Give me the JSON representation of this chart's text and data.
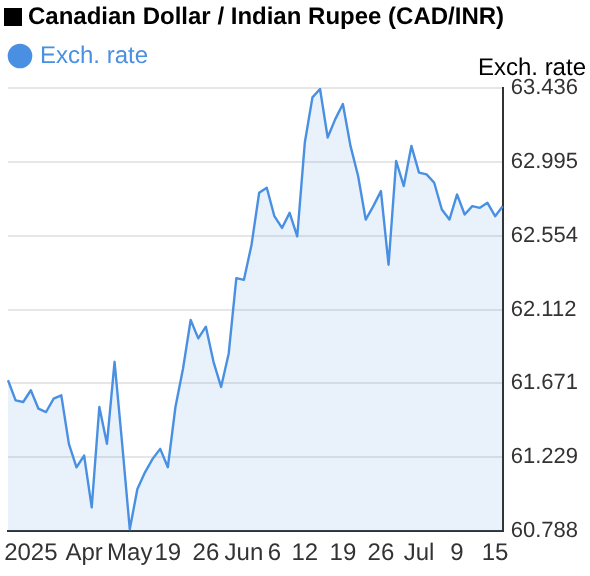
{
  "chart_data": {
    "type": "area",
    "title": "Canadian Dollar / Indian Rupee (CAD/INR)",
    "ylabel": "Exch. rate",
    "categories": [
      null,
      null,
      null,
      "2025",
      null,
      null,
      null,
      null,
      null,
      null,
      "Apr",
      null,
      null,
      null,
      null,
      null,
      "May",
      null,
      null,
      null,
      null,
      "19",
      null,
      null,
      null,
      null,
      "26",
      null,
      null,
      null,
      null,
      "Jun",
      null,
      null,
      null,
      "6",
      null,
      null,
      null,
      "12",
      null,
      null,
      null,
      null,
      "19",
      null,
      null,
      null,
      null,
      "26",
      null,
      null,
      null,
      null,
      "Jul",
      null,
      null,
      null,
      null,
      "9",
      null,
      null,
      null,
      null,
      "15",
      null
    ],
    "series": [
      {
        "name": "Exch. rate",
        "color": "#4a90e2",
        "values": [
          61.69,
          61.57,
          61.56,
          61.63,
          61.52,
          61.5,
          61.58,
          61.6,
          61.31,
          61.17,
          61.24,
          60.93,
          61.53,
          61.31,
          61.8,
          61.31,
          60.8,
          61.04,
          61.14,
          61.22,
          61.28,
          61.17,
          61.53,
          61.76,
          62.05,
          61.94,
          62.01,
          61.8,
          61.65,
          61.85,
          62.3,
          62.29,
          62.5,
          62.81,
          62.84,
          62.67,
          62.6,
          62.69,
          62.55,
          63.11,
          63.38,
          63.43,
          63.14,
          63.25,
          63.34,
          63.09,
          62.91,
          62.65,
          62.73,
          62.82,
          62.38,
          63.0,
          62.85,
          63.09,
          62.93,
          62.92,
          62.87,
          62.71,
          62.65,
          62.8,
          62.68,
          62.73,
          62.72,
          62.75,
          62.67,
          62.73
        ]
      }
    ],
    "ylim": [
      60.788,
      63.436
    ],
    "yticks": [
      60.788,
      61.229,
      61.671,
      62.112,
      62.554,
      62.995,
      63.436
    ],
    "grid": "y",
    "legend": "top left",
    "marker": "none"
  }
}
